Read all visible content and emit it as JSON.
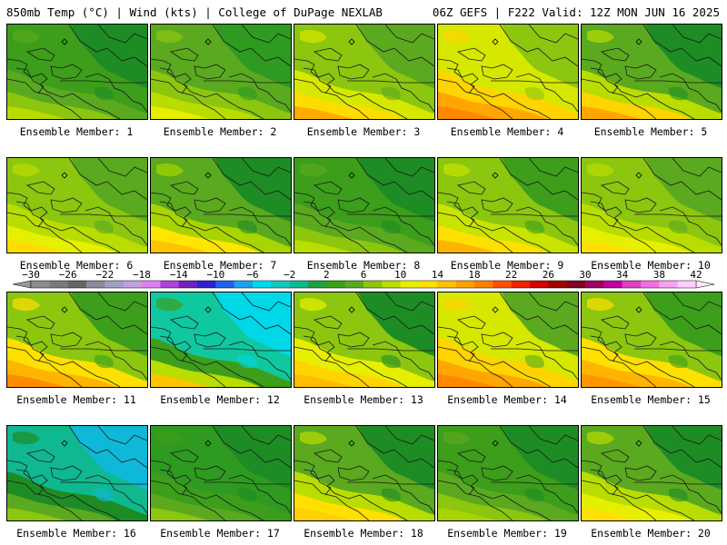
{
  "header": {
    "left": "850mb Temp (°C) | Wind (kts) | College of DuPage NEXLAB",
    "right": "06Z GEFS | F222 Valid: 12Z MON JUN 16 2025"
  },
  "members": [
    {
      "label": "Ensemble Member: 1",
      "palette": [
        "#1e8c24",
        "#3c9e1a",
        "#5aa91f",
        "#8cc60f",
        "#b9dd00"
      ]
    },
    {
      "label": "Ensemble Member: 2",
      "palette": [
        "#2f9a20",
        "#5aa91f",
        "#8cc60f",
        "#b9dd00",
        "#e7ef00"
      ]
    },
    {
      "label": "Ensemble Member: 3",
      "palette": [
        "#5aa91f",
        "#8cc60f",
        "#d6e800",
        "#ffdc00",
        "#ffab00"
      ]
    },
    {
      "label": "Ensemble Member: 4",
      "palette": [
        "#8cc60f",
        "#d6e800",
        "#ffd400",
        "#ffa600",
        "#ff8800"
      ]
    },
    {
      "label": "Ensemble Member: 5",
      "palette": [
        "#1e8c24",
        "#5aa91f",
        "#b9dd00",
        "#ffd400",
        "#ffa600"
      ]
    },
    {
      "label": "Ensemble Member: 6",
      "palette": [
        "#5aa91f",
        "#8cc60f",
        "#b9dd00",
        "#e7ef00",
        "#ffdc00"
      ]
    },
    {
      "label": "Ensemble Member: 7",
      "palette": [
        "#1e8c24",
        "#5aa91f",
        "#a8d400",
        "#ffe600",
        "#ffc400"
      ]
    },
    {
      "label": "Ensemble Member: 8",
      "palette": [
        "#1e8c24",
        "#3c9e1a",
        "#5aa91f",
        "#8cc60f",
        "#b9dd00"
      ]
    },
    {
      "label": "Ensemble Member: 9",
      "palette": [
        "#3c9e1a",
        "#8cc60f",
        "#c8e400",
        "#ffe000",
        "#ffb400"
      ]
    },
    {
      "label": "Ensemble Member: 10",
      "palette": [
        "#5aa91f",
        "#8cc60f",
        "#b9dd00",
        "#e7ef00",
        "#ffe000"
      ]
    },
    {
      "label": "Ensemble Member: 11",
      "palette": [
        "#3c9e1a",
        "#8cc60f",
        "#ffe000",
        "#ffb400",
        "#ff8c00"
      ]
    },
    {
      "label": "Ensemble Member: 12",
      "palette": [
        "#00d8e8",
        "#10c8a0",
        "#3c9e1a",
        "#b9dd00",
        "#ffc400"
      ]
    },
    {
      "label": "Ensemble Member: 13",
      "palette": [
        "#1e8c24",
        "#8cc60f",
        "#e7ef00",
        "#ffd400",
        "#ffbc00"
      ]
    },
    {
      "label": "Ensemble Member: 14",
      "palette": [
        "#5aa91f",
        "#d6e800",
        "#ffd400",
        "#ffa600",
        "#ff8800"
      ]
    },
    {
      "label": "Ensemble Member: 15",
      "palette": [
        "#3c9e1a",
        "#8cc60f",
        "#ffe000",
        "#ffb400",
        "#ff9600"
      ]
    },
    {
      "label": "Ensemble Member: 16",
      "palette": [
        "#10b8d8",
        "#10b890",
        "#1e8c24",
        "#5aa91f",
        "#8cc60f"
      ]
    },
    {
      "label": "Ensemble Member: 17",
      "palette": [
        "#1e8c24",
        "#2f9a20",
        "#3c9e1a",
        "#5aa91f",
        "#8cc60f"
      ]
    },
    {
      "label": "Ensemble Member: 18",
      "palette": [
        "#1e8c24",
        "#5aa91f",
        "#b9dd00",
        "#ffe000",
        "#ffd000"
      ]
    },
    {
      "label": "Ensemble Member: 19",
      "palette": [
        "#1e8c24",
        "#3c9e1a",
        "#5aa91f",
        "#8cc60f",
        "#a8d400"
      ]
    },
    {
      "label": "Ensemble Member: 20",
      "palette": [
        "#1e8c24",
        "#5aa91f",
        "#b9dd00",
        "#e7ef00",
        "#ffe000"
      ]
    }
  ],
  "colorbar": {
    "ticks": [
      "−30",
      "−26",
      "−22",
      "−18",
      "−14",
      "−10",
      "−6",
      "−2",
      "2",
      "6",
      "10",
      "14",
      "18",
      "22",
      "26",
      "30",
      "34",
      "38",
      "42"
    ],
    "colors": [
      "#8c8c8c",
      "#7a7a7a",
      "#666666",
      "#8a8a9a",
      "#a0a0c0",
      "#c0a0e0",
      "#e080f0",
      "#b040e0",
      "#7020c0",
      "#3020d0",
      "#2060f0",
      "#20a0f0",
      "#00d8f0",
      "#10c8c0",
      "#10b890",
      "#20a040",
      "#3c9e1a",
      "#5aa91f",
      "#8cc60f",
      "#b9dd00",
      "#e7ef00",
      "#ffe000",
      "#ffc000",
      "#ffa000",
      "#ff8000",
      "#ff5000",
      "#f02000",
      "#d00000",
      "#a00000",
      "#800020",
      "#a00060",
      "#c000a0",
      "#e040c0",
      "#f070e0",
      "#f8a0f0",
      "#ffd0ff"
    ]
  }
}
